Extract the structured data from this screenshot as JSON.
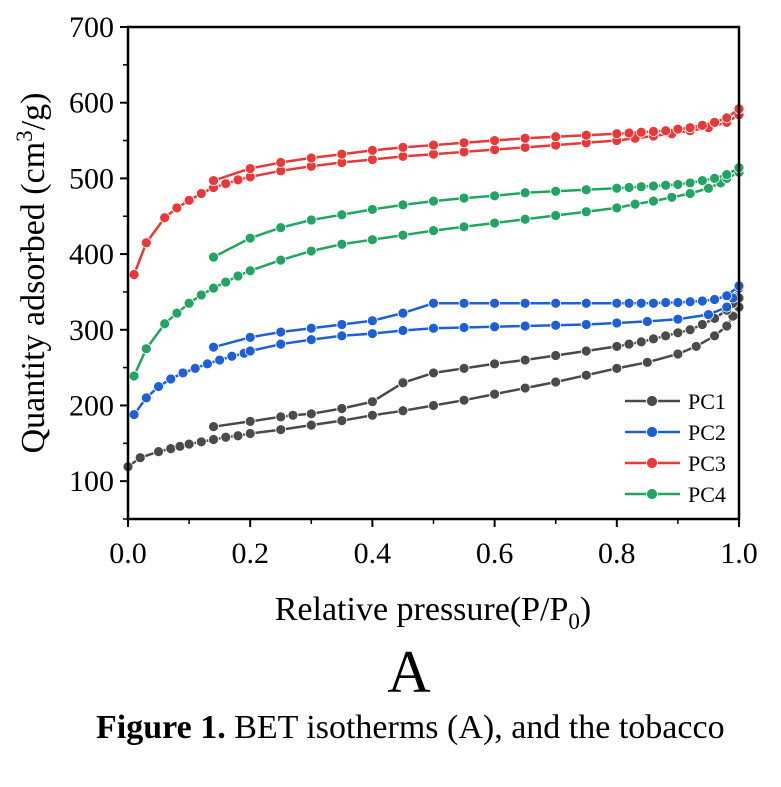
{
  "chart_data": {
    "type": "line",
    "xlabel_main": "Relative pressure(P/P",
    "xlabel_sub": "0",
    "xlabel_end": ")",
    "ylabel_main": "Quantity adsorbed (cm",
    "ylabel_sup": "3",
    "ylabel_end": "/g)",
    "xlim": [
      0.0,
      1.0
    ],
    "ylim": [
      50,
      700
    ],
    "x_ticks": [
      0.0,
      0.2,
      0.4,
      0.6,
      0.8,
      1.0
    ],
    "x_tick_labels": [
      "0.0",
      "0.2",
      "0.4",
      "0.6",
      "0.8",
      "1.0"
    ],
    "y_ticks": [
      100,
      200,
      300,
      400,
      500,
      600,
      700
    ],
    "y_tick_labels": [
      "100",
      "200",
      "300",
      "400",
      "500",
      "600",
      "700"
    ],
    "grid": false,
    "legend_position": "bottom-right",
    "series": [
      {
        "name": "PC1",
        "color": "#4a4a4a",
        "adsorption": {
          "x": [
            0.0,
            0.02,
            0.05,
            0.07,
            0.085,
            0.1,
            0.12,
            0.14,
            0.16,
            0.18,
            0.2,
            0.25,
            0.3,
            0.35,
            0.4,
            0.45,
            0.5,
            0.55,
            0.6,
            0.65,
            0.7,
            0.75,
            0.8,
            0.85,
            0.9,
            0.93,
            0.96,
            0.98,
            0.99,
            1.0
          ],
          "y": [
            119,
            131,
            139,
            143,
            146,
            149,
            152,
            155,
            158,
            160,
            163,
            168,
            174,
            180,
            187,
            193,
            200,
            207,
            215,
            223,
            231,
            240,
            249,
            257,
            268,
            278,
            292,
            305,
            318,
            330
          ]
        },
        "desorption": {
          "x": [
            1.0,
            0.99,
            0.98,
            0.96,
            0.94,
            0.92,
            0.9,
            0.88,
            0.86,
            0.84,
            0.82,
            0.8,
            0.75,
            0.7,
            0.65,
            0.6,
            0.55,
            0.5,
            0.45,
            0.4,
            0.35,
            0.3,
            0.27,
            0.25,
            0.2,
            0.14
          ],
          "y": [
            342,
            335,
            326,
            315,
            307,
            300,
            296,
            292,
            288,
            284,
            281,
            278,
            272,
            266,
            260,
            255,
            249,
            243,
            230,
            205,
            196,
            189,
            187,
            185,
            179,
            172
          ]
        }
      },
      {
        "name": "PC2",
        "color": "#1f5fd6",
        "adsorption": {
          "x": [
            0.01,
            0.03,
            0.05,
            0.07,
            0.09,
            0.11,
            0.13,
            0.15,
            0.17,
            0.19,
            0.2,
            0.25,
            0.3,
            0.35,
            0.4,
            0.45,
            0.5,
            0.55,
            0.6,
            0.65,
            0.7,
            0.75,
            0.8,
            0.85,
            0.9,
            0.95,
            0.98,
            0.99,
            1.0
          ],
          "y": [
            188,
            210,
            225,
            235,
            243,
            249,
            255,
            260,
            265,
            269,
            272,
            281,
            287,
            292,
            295,
            299,
            302,
            303,
            304,
            305,
            306,
            307,
            309,
            311,
            314,
            320,
            330,
            342,
            355
          ]
        },
        "desorption": {
          "x": [
            1.0,
            0.98,
            0.96,
            0.94,
            0.92,
            0.9,
            0.88,
            0.86,
            0.84,
            0.82,
            0.8,
            0.75,
            0.7,
            0.65,
            0.6,
            0.55,
            0.5,
            0.45,
            0.4,
            0.35,
            0.3,
            0.25,
            0.2,
            0.14
          ],
          "y": [
            358,
            345,
            340,
            338,
            337,
            336,
            336,
            335,
            335,
            335,
            335,
            335,
            335,
            335,
            335,
            335,
            335,
            322,
            312,
            307,
            302,
            297,
            290,
            277
          ]
        }
      },
      {
        "name": "PC3",
        "color": "#e83838",
        "adsorption": {
          "x": [
            0.01,
            0.03,
            0.06,
            0.08,
            0.1,
            0.12,
            0.14,
            0.16,
            0.18,
            0.2,
            0.25,
            0.3,
            0.35,
            0.4,
            0.45,
            0.5,
            0.55,
            0.6,
            0.65,
            0.7,
            0.75,
            0.8,
            0.83,
            0.86,
            0.89,
            0.92,
            0.95,
            0.98,
            1.0
          ],
          "y": [
            373,
            415,
            448,
            461,
            471,
            480,
            488,
            493,
            498,
            502,
            510,
            516,
            521,
            525,
            529,
            532,
            535,
            538,
            541,
            544,
            547,
            550,
            553,
            556,
            559,
            563,
            567,
            574,
            584
          ]
        },
        "desorption": {
          "x": [
            1.0,
            0.98,
            0.96,
            0.94,
            0.92,
            0.9,
            0.88,
            0.86,
            0.84,
            0.82,
            0.8,
            0.75,
            0.7,
            0.65,
            0.6,
            0.55,
            0.5,
            0.45,
            0.4,
            0.35,
            0.3,
            0.25,
            0.2,
            0.14
          ],
          "y": [
            592,
            580,
            574,
            570,
            567,
            565,
            563,
            562,
            561,
            560,
            559,
            557,
            555,
            553,
            550,
            547,
            544,
            541,
            537,
            532,
            527,
            521,
            513,
            497
          ]
        }
      },
      {
        "name": "PC4",
        "color": "#22a463",
        "adsorption": {
          "x": [
            0.01,
            0.03,
            0.06,
            0.08,
            0.1,
            0.12,
            0.14,
            0.16,
            0.18,
            0.2,
            0.25,
            0.3,
            0.35,
            0.4,
            0.45,
            0.5,
            0.55,
            0.6,
            0.65,
            0.7,
            0.75,
            0.8,
            0.83,
            0.86,
            0.89,
            0.92,
            0.95,
            0.97,
            0.98,
            1.0
          ],
          "y": [
            239,
            275,
            308,
            322,
            335,
            346,
            355,
            363,
            371,
            378,
            392,
            404,
            413,
            419,
            425,
            431,
            436,
            441,
            446,
            451,
            456,
            461,
            466,
            470,
            475,
            480,
            487,
            494,
            500,
            508
          ]
        },
        "desorption": {
          "x": [
            1.0,
            0.98,
            0.96,
            0.94,
            0.92,
            0.9,
            0.88,
            0.86,
            0.84,
            0.82,
            0.8,
            0.75,
            0.7,
            0.65,
            0.6,
            0.55,
            0.5,
            0.45,
            0.4,
            0.35,
            0.3,
            0.25,
            0.2,
            0.14
          ],
          "y": [
            514,
            505,
            500,
            497,
            494,
            492,
            491,
            490,
            489,
            488,
            487,
            485,
            483,
            481,
            477,
            474,
            470,
            465,
            459,
            452,
            445,
            435,
            421,
            396
          ]
        }
      }
    ]
  },
  "panel_label": "A",
  "caption": {
    "bold": "Figure 1.",
    "text": " BET isotherms (A), and the tobacco"
  }
}
